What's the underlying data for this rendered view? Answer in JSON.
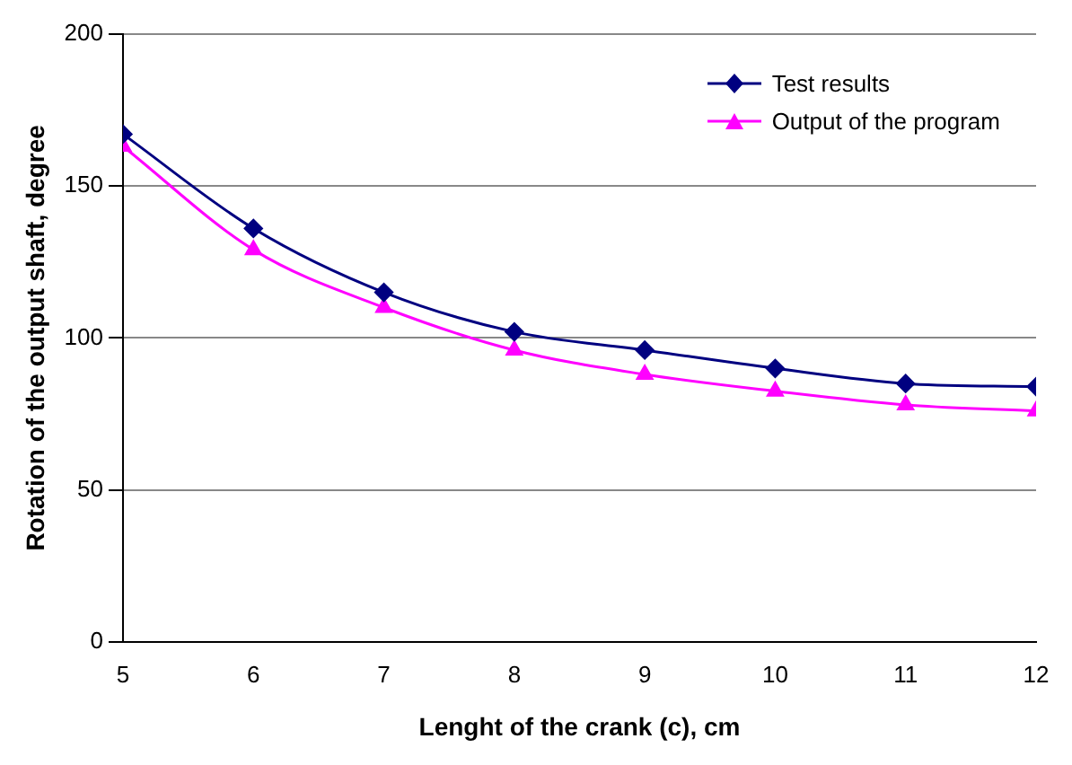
{
  "chart_data": {
    "type": "line",
    "xlabel": "Lenght of the crank (c), cm",
    "ylabel": "Rotation of the output shaft, degree",
    "x": [
      5,
      6,
      7,
      8,
      9,
      10,
      11,
      12
    ],
    "series": [
      {
        "name": "Test results",
        "color": "#000080",
        "marker": "diamond",
        "values": [
          167,
          136,
          115,
          102,
          96,
          90,
          85,
          84
        ]
      },
      {
        "name": "Output of the program",
        "color": "#ff00ff",
        "marker": "triangle",
        "values": [
          163,
          129,
          110,
          96,
          88,
          82.5,
          78,
          76
        ]
      }
    ],
    "xlim": [
      5,
      12
    ],
    "xticks": [
      5,
      6,
      7,
      8,
      9,
      10,
      11,
      12
    ],
    "ylim": [
      0,
      200
    ],
    "yticks": [
      0,
      50,
      100,
      150,
      200
    ],
    "grid": "y",
    "legend": "top right",
    "line_style": "solid"
  }
}
